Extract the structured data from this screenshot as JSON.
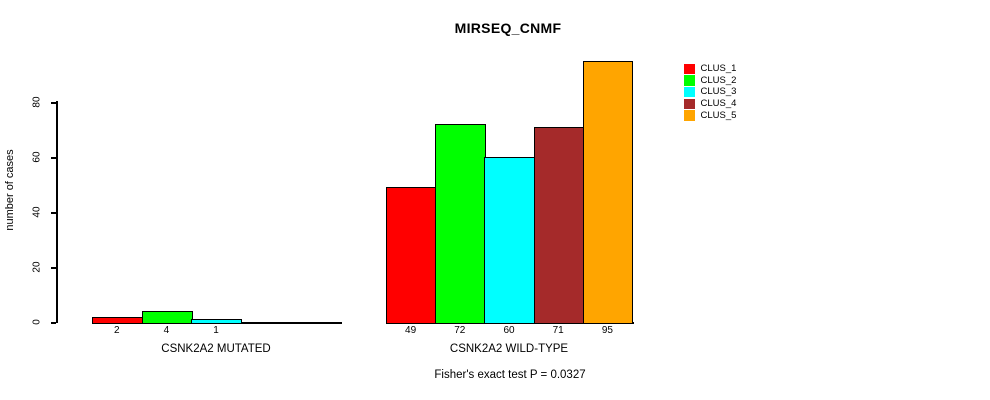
{
  "chart_data": {
    "type": "bar",
    "title": "MIRSEQ_CNMF",
    "ylabel": "number of cases",
    "yticks": [
      0,
      20,
      40,
      60,
      80
    ],
    "ylim": [
      0,
      96
    ],
    "grid": false,
    "legend_position": "right",
    "legend": [
      {
        "name": "CLUS_1",
        "color": "#FF0000"
      },
      {
        "name": "CLUS_2",
        "color": "#00FF00"
      },
      {
        "name": "CLUS_3",
        "color": "#00FFFF"
      },
      {
        "name": "CLUS_4",
        "color": "#A52A2A"
      },
      {
        "name": "CLUS_5",
        "color": "#FFA500"
      }
    ],
    "categories": [
      "CLUS_1",
      "CLUS_2",
      "CLUS_3",
      "CLUS_4",
      "CLUS_5"
    ],
    "groups": [
      {
        "label": "CSNK2A2 MUTATED",
        "values": [
          2,
          4,
          1,
          null,
          null
        ]
      },
      {
        "label": "CSNK2A2 WILD-TYPE",
        "values": [
          49,
          72,
          60,
          71,
          95
        ]
      }
    ],
    "annotation": "Fisher's exact test P = 0.0327"
  }
}
